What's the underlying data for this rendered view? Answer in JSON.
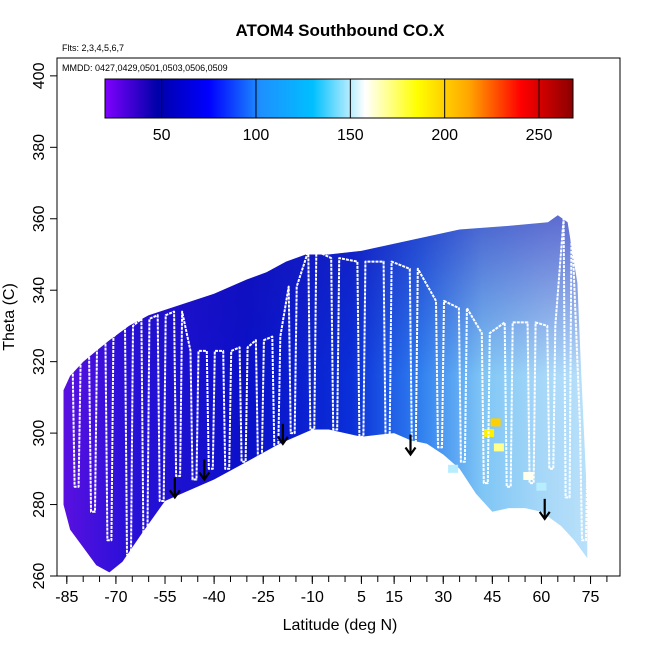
{
  "chart_data": {
    "type": "heatmap",
    "title": "ATOM4 Southbound CO.X",
    "flights_note": "Flts: 2,3,4,5,6,7",
    "dates_note": "MMDD: 0427,0429,0501,0503,0506,0509",
    "xlabel": "Latitude (deg N)",
    "ylabel": "Theta (C)",
    "xlim": [
      -88,
      84
    ],
    "ylim": [
      260,
      405
    ],
    "x_ticks": [
      -85,
      -70,
      -55,
      -40,
      -25,
      -10,
      5,
      15,
      30,
      45,
      60,
      75
    ],
    "y_ticks": [
      260,
      280,
      300,
      320,
      340,
      360,
      380,
      400
    ],
    "colorbar": {
      "range": [
        20,
        268
      ],
      "ticks": [
        50,
        100,
        150,
        200,
        250
      ],
      "colors": [
        "#7f00ff",
        "#0000a8",
        "#0000ff",
        "#1e90ff",
        "#00bfff",
        "#ffffff",
        "#ffff00",
        "#ffa500",
        "#ff0000",
        "#8b0000"
      ]
    },
    "domain_top": [
      [
        -86,
        312
      ],
      [
        -84,
        316
      ],
      [
        -80,
        320
      ],
      [
        -76,
        323
      ],
      [
        -72,
        326
      ],
      [
        -66,
        330
      ],
      [
        -60,
        333
      ],
      [
        -50,
        336
      ],
      [
        -40,
        339
      ],
      [
        -30,
        343
      ],
      [
        -24,
        345
      ],
      [
        -18,
        348
      ],
      [
        -12,
        350
      ],
      [
        -5,
        350
      ],
      [
        5,
        351
      ],
      [
        15,
        353
      ],
      [
        25,
        355
      ],
      [
        35,
        357
      ],
      [
        50,
        358
      ],
      [
        62,
        359
      ],
      [
        65,
        361
      ],
      [
        68,
        359
      ],
      [
        71,
        342
      ],
      [
        72,
        320
      ],
      [
        73,
        300
      ],
      [
        74,
        280
      ],
      [
        74,
        270
      ]
    ],
    "domain_bottom": [
      [
        74,
        265
      ],
      [
        70,
        270
      ],
      [
        66,
        274
      ],
      [
        60,
        278
      ],
      [
        55,
        279
      ],
      [
        50,
        279
      ],
      [
        45,
        278
      ],
      [
        40,
        283
      ],
      [
        35,
        290
      ],
      [
        30,
        294
      ],
      [
        25,
        297
      ],
      [
        20,
        298
      ],
      [
        15,
        300
      ],
      [
        5,
        299
      ],
      [
        -5,
        301
      ],
      [
        -10,
        301
      ],
      [
        -20,
        297
      ],
      [
        -30,
        292
      ],
      [
        -40,
        287
      ],
      [
        -50,
        283
      ],
      [
        -55,
        281
      ],
      [
        -62,
        272
      ],
      [
        -68,
        264
      ],
      [
        -72,
        261
      ],
      [
        -76,
        263
      ],
      [
        -80,
        268
      ],
      [
        -84,
        273
      ],
      [
        -86,
        280
      ]
    ],
    "profiles": [
      {
        "lat": -82,
        "low": 285,
        "high": 320
      },
      {
        "lat": -77,
        "low": 278,
        "high": 324
      },
      {
        "lat": -72,
        "low": 270,
        "high": 327
      },
      {
        "lat": -66,
        "low": 266,
        "high": 330
      },
      {
        "lat": -61,
        "low": 270,
        "high": 332
      },
      {
        "lat": -56,
        "low": 281,
        "high": 333
      },
      {
        "lat": -51,
        "low": 288,
        "high": 334
      },
      {
        "lat": -46,
        "low": 287,
        "high": 323
      },
      {
        "lat": -41,
        "low": 290,
        "high": 323
      },
      {
        "lat": -36,
        "low": 290,
        "high": 323
      },
      {
        "lat": -31,
        "low": 292,
        "high": 324
      },
      {
        "lat": -26,
        "low": 293,
        "high": 326
      },
      {
        "lat": -21,
        "low": 296,
        "high": 327
      },
      {
        "lat": -16,
        "low": 300,
        "high": 341
      },
      {
        "lat": -10,
        "low": 301,
        "high": 351
      },
      {
        "lat": -3,
        "low": 301,
        "high": 349
      },
      {
        "lat": 5,
        "low": 299,
        "high": 348
      },
      {
        "lat": 13,
        "low": 297,
        "high": 348
      },
      {
        "lat": 21,
        "low": 297,
        "high": 346
      },
      {
        "lat": 29,
        "low": 296,
        "high": 337
      },
      {
        "lat": 36,
        "low": 292,
        "high": 335
      },
      {
        "lat": 43,
        "low": 286,
        "high": 328
      },
      {
        "lat": 50,
        "low": 285,
        "high": 331
      },
      {
        "lat": 57,
        "low": 286,
        "high": 331
      },
      {
        "lat": 63,
        "low": 290,
        "high": 330
      },
      {
        "lat": 68,
        "low": 282,
        "high": 360
      },
      {
        "lat": 73,
        "low": 270,
        "high": 302
      }
    ],
    "arrows": [
      {
        "lat": -52,
        "theta": 282
      },
      {
        "lat": -43,
        "theta": 287
      },
      {
        "lat": -19,
        "theta": 297
      },
      {
        "lat": 20,
        "theta": 294
      },
      {
        "lat": 61,
        "theta": 276
      }
    ],
    "hotspots": [
      {
        "lat": 46,
        "theta": 303,
        "value": 200
      },
      {
        "lat": 44,
        "theta": 300,
        "value": 190
      },
      {
        "lat": 47,
        "theta": 296,
        "value": 170
      },
      {
        "lat": 56,
        "theta": 288,
        "value": 160
      },
      {
        "lat": 60,
        "theta": 285,
        "value": 150
      },
      {
        "lat": 33,
        "theta": 290,
        "value": 150
      }
    ]
  }
}
